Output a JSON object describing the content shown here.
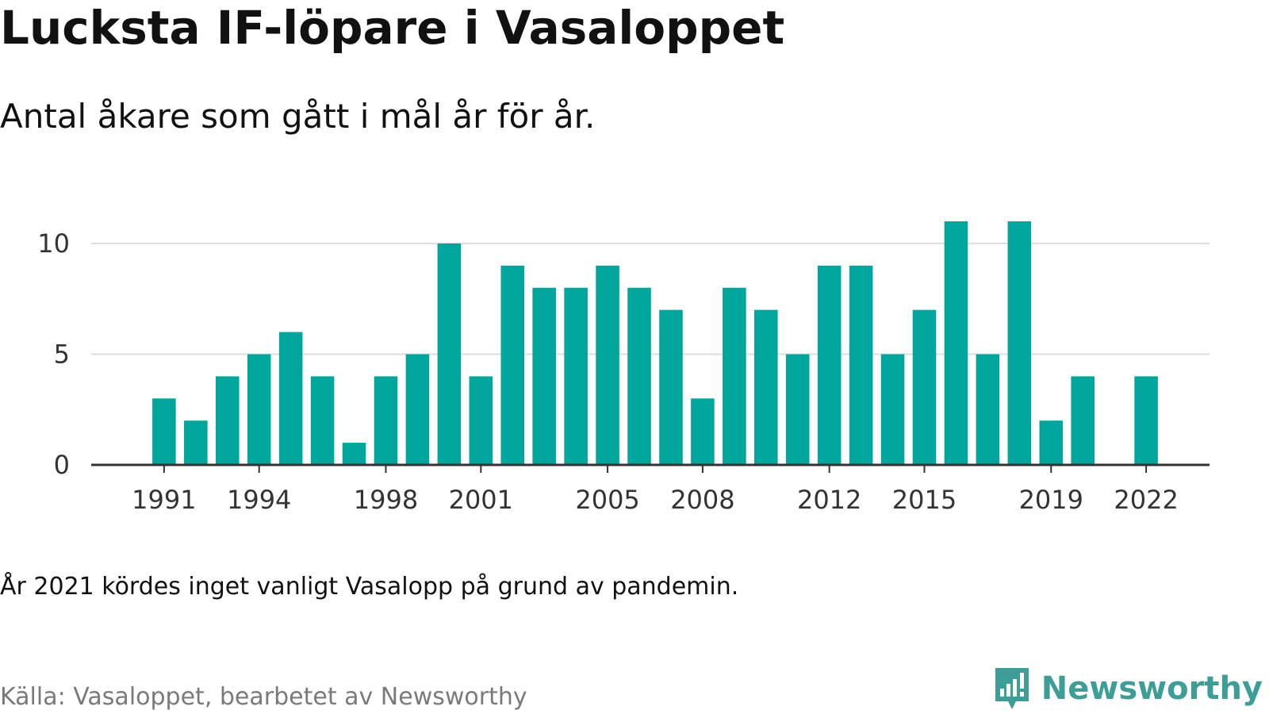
{
  "title": "Lucksta IF-löpare i Vasaloppet",
  "subtitle": "Antal åkare som gått i mål år för år.",
  "note": "År 2021 kördes inget vanligt Vasalopp på grund av pandemin.",
  "source": "Källa: Vasaloppet, bearbetet av Newsworthy",
  "brand": {
    "name": "Newsworthy",
    "icon": "newsworthy-logo-icon",
    "color": "#3c9e97"
  },
  "chart_data": {
    "type": "bar",
    "title": "Lucksta IF-löpare i Vasaloppet",
    "subtitle": "Antal åkare som gått i mål år för år.",
    "xlabel": "",
    "ylabel": "",
    "bar_color": "#00a69b",
    "grid": true,
    "x": [
      1991,
      1992,
      1993,
      1994,
      1995,
      1996,
      1997,
      1998,
      1999,
      2000,
      2001,
      2002,
      2003,
      2004,
      2005,
      2006,
      2007,
      2008,
      2009,
      2010,
      2011,
      2012,
      2013,
      2014,
      2015,
      2016,
      2017,
      2018,
      2019,
      2020,
      2021,
      2022
    ],
    "values": [
      3,
      2,
      4,
      5,
      6,
      4,
      1,
      4,
      5,
      10,
      4,
      9,
      8,
      8,
      9,
      8,
      7,
      3,
      8,
      7,
      5,
      9,
      9,
      5,
      7,
      11,
      5,
      11,
      2,
      4,
      null,
      4
    ],
    "xlim": [
      1988.7,
      2024
    ],
    "ylim": [
      0,
      11
    ],
    "y_ticks": [
      0,
      5,
      10
    ],
    "x_ticks": [
      1991,
      1994,
      1998,
      2001,
      2005,
      2008,
      2012,
      2015,
      2019,
      2022
    ]
  }
}
